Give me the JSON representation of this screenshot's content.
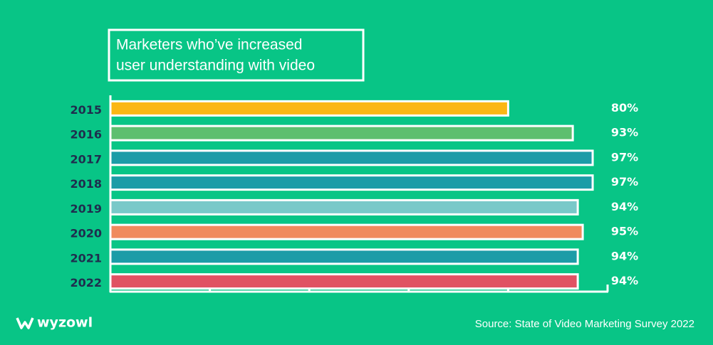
{
  "chart_data": {
    "type": "bar",
    "orientation": "horizontal",
    "title": [
      "Marketers who’ve increased",
      "user understanding with video"
    ],
    "categories": [
      "2015",
      "2016",
      "2017",
      "2018",
      "2019",
      "2020",
      "2021",
      "2022"
    ],
    "values": [
      80,
      93,
      97,
      97,
      94,
      95,
      94,
      94
    ],
    "value_labels": [
      "80%",
      "93%",
      "97%",
      "97%",
      "94%",
      "95%",
      "94%",
      "94%"
    ],
    "colors": [
      "#fbb714",
      "#5dbf6f",
      "#1c9ca7",
      "#1c9ca7",
      "#79c9c9",
      "#f08a5d",
      "#1c9ca7",
      "#e05263"
    ],
    "xlim": [
      0,
      100
    ],
    "xticks": [
      0,
      20,
      40,
      60,
      80,
      100
    ],
    "source": "Source: State of Video Marketing Survey 2022",
    "logo": "wyzowl"
  }
}
